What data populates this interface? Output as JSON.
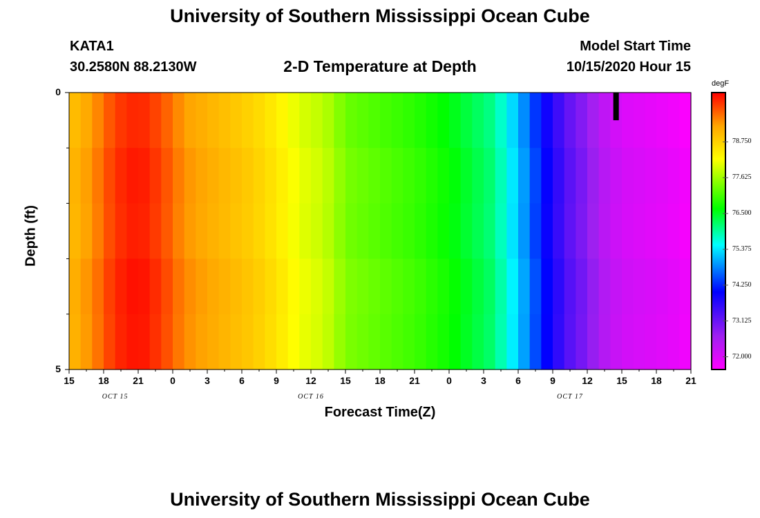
{
  "header": {
    "title_top": "University of Southern Mississippi Ocean Cube",
    "title_bottom": "University of Southern Mississippi Ocean Cube",
    "station": "KATA1",
    "location": "30.2580N 88.2130W",
    "model_start_label": "Model Start Time",
    "model_start_value": "10/15/2020 Hour 15"
  },
  "chart_data": {
    "type": "heatmap",
    "title": "2-D Temperature at Depth",
    "xlabel": "Forecast Time(Z)",
    "ylabel": "Depth (ft)",
    "ylim": [
      0,
      5
    ],
    "y_ticks": [
      "0",
      "5"
    ],
    "x_hours_start": 15,
    "x_hours_end": 69,
    "x_tick_labels": [
      "15",
      "18",
      "21",
      "0",
      "3",
      "6",
      "9",
      "12",
      "15",
      "18",
      "21",
      "0",
      "3",
      "6",
      "9",
      "12",
      "15",
      "18",
      "21"
    ],
    "date_labels": [
      {
        "text": "OCT 15",
        "hour": 19
      },
      {
        "text": "OCT 16",
        "hour": 36
      },
      {
        "text": "OCT 17",
        "hour": 58.5
      }
    ],
    "colorbar": {
      "unit": "degF",
      "min": 71.6,
      "max": 80.3,
      "ticks": [
        "78.750",
        "77.625",
        "76.500",
        "75.375",
        "74.250",
        "73.125",
        "72.000"
      ],
      "tick_values": [
        78.75,
        77.625,
        76.5,
        75.375,
        74.25,
        73.125,
        72.0
      ]
    },
    "temperature_profile": [
      {
        "hour": 15,
        "temp": 78.9
      },
      {
        "hour": 17,
        "temp": 79.3
      },
      {
        "hour": 19,
        "temp": 79.9
      },
      {
        "hour": 21,
        "temp": 80.1
      },
      {
        "hour": 23,
        "temp": 79.8
      },
      {
        "hour": 25,
        "temp": 79.3
      },
      {
        "hour": 28,
        "temp": 79.0
      },
      {
        "hour": 31,
        "temp": 78.7
      },
      {
        "hour": 33,
        "temp": 78.4
      },
      {
        "hour": 35,
        "temp": 78.0
      },
      {
        "hour": 37,
        "temp": 77.8
      },
      {
        "hour": 38,
        "temp": 77.6
      },
      {
        "hour": 39,
        "temp": 77.3
      },
      {
        "hour": 42,
        "temp": 77.1
      },
      {
        "hour": 45,
        "temp": 76.9
      },
      {
        "hour": 48,
        "temp": 76.6
      },
      {
        "hour": 50,
        "temp": 76.3
      },
      {
        "hour": 52,
        "temp": 76.0
      },
      {
        "hour": 53,
        "temp": 75.5
      },
      {
        "hour": 54,
        "temp": 75.1
      },
      {
        "hour": 55,
        "temp": 74.6
      },
      {
        "hour": 56,
        "temp": 74.1
      },
      {
        "hour": 57,
        "temp": 73.7
      },
      {
        "hour": 58,
        "temp": 73.3
      },
      {
        "hour": 59,
        "temp": 73.0
      },
      {
        "hour": 60,
        "temp": 72.8
      },
      {
        "hour": 61,
        "temp": 72.4
      },
      {
        "hour": 63,
        "temp": 72.0
      },
      {
        "hour": 65,
        "temp": 71.9
      },
      {
        "hour": 67,
        "temp": 71.8
      },
      {
        "hour": 69,
        "temp": 71.6
      }
    ],
    "marker": {
      "hour": 62.5,
      "depth_top": 0,
      "depth_bottom": 0.5
    }
  }
}
